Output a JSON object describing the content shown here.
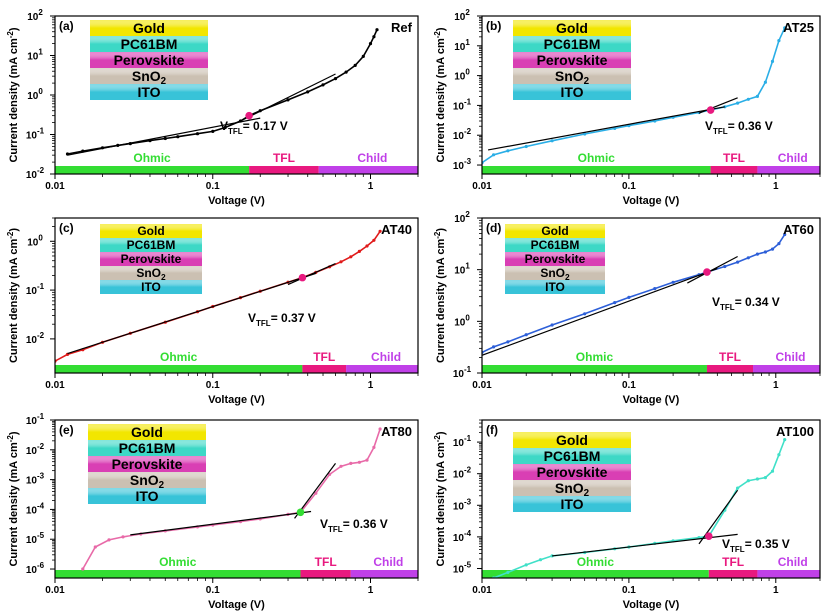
{
  "colors": {
    "ohmic": "#33dd33",
    "tfl": "#e8197f",
    "child": "#c040e8",
    "layer_gold": "#f2e600",
    "layer_pcbm": "#3dd8c6",
    "layer_perovskite": "#d93fb4",
    "layer_sno2": "#cbc0b2",
    "layer_ito": "#38c3d8"
  },
  "chart_data": [
    {
      "type": "scatter",
      "panel": "(a)",
      "label": "Ref",
      "vtfl_text": "V",
      "vtfl_sub": "TFL",
      "vtfl_value": "= 0.17 V",
      "vtfl": 0.17,
      "xlabel": "Voltage (V)",
      "ylabel": "Current density (mA cm",
      "ylabel_sup": "-2",
      "ylabel_end": ")",
      "x_scale": "log",
      "y_scale": "log",
      "xlim": [
        0.01,
        2.0
      ],
      "ylim": [
        0.01,
        100
      ],
      "x_ticks": [
        "0.01",
        "0.1",
        "1"
      ],
      "y_ticks": [
        "10",
        "10",
        "10",
        "10",
        "10"
      ],
      "y_tick_exps": [
        "-2",
        "-1",
        "0",
        "1",
        "2"
      ],
      "legend_layers": [
        {
          "text": "Gold",
          "sub": ""
        },
        {
          "text": "PC61BM",
          "sub": ""
        },
        {
          "text": "Perovskite",
          "sub": ""
        },
        {
          "text": "SnO",
          "sub": "2"
        },
        {
          "text": "ITO",
          "sub": ""
        }
      ],
      "regions": [
        "Ohmic",
        "TFL",
        "Child"
      ],
      "region_bounds": [
        0.17,
        0.47
      ],
      "marker_color": "#e8197f",
      "series_color": "#000000",
      "data": [
        [
          0.012,
          0.032
        ],
        [
          0.015,
          0.038
        ],
        [
          0.02,
          0.046
        ],
        [
          0.025,
          0.053
        ],
        [
          0.03,
          0.059
        ],
        [
          0.04,
          0.07
        ],
        [
          0.05,
          0.079
        ],
        [
          0.06,
          0.088
        ],
        [
          0.08,
          0.105
        ],
        [
          0.1,
          0.12
        ],
        [
          0.12,
          0.15
        ],
        [
          0.15,
          0.22
        ],
        [
          0.17,
          0.3
        ],
        [
          0.2,
          0.4
        ],
        [
          0.3,
          0.75
        ],
        [
          0.4,
          1.2
        ],
        [
          0.5,
          1.8
        ],
        [
          0.6,
          2.6
        ],
        [
          0.7,
          3.8
        ],
        [
          0.8,
          5.6
        ],
        [
          0.9,
          9.5
        ],
        [
          1.0,
          20
        ],
        [
          1.05,
          30
        ],
        [
          1.1,
          45
        ]
      ],
      "fit_ohmic": [
        [
          0.012,
          0.03
        ],
        [
          0.2,
          0.26
        ]
      ],
      "fit_tfl": [
        [
          0.15,
          0.22
        ],
        [
          0.6,
          3.4
        ]
      ]
    },
    {
      "type": "scatter",
      "panel": "(b)",
      "label": "AT25",
      "vtfl_text": "V",
      "vtfl_sub": "TFL",
      "vtfl_value": "= 0.36 V",
      "vtfl": 0.36,
      "xlabel": "Voltage (V)",
      "ylabel": "Current density (mA cm",
      "ylabel_sup": "-2",
      "ylabel_end": ")",
      "x_scale": "log",
      "y_scale": "log",
      "xlim": [
        0.01,
        2.0
      ],
      "ylim": [
        0.0005,
        100
      ],
      "x_ticks": [
        "0.01",
        "0.1",
        "1"
      ],
      "y_ticks": [
        "10",
        "10",
        "10",
        "10",
        "10",
        "10"
      ],
      "y_tick_exps": [
        "-3",
        "-2",
        "-1",
        "0",
        "1",
        "2"
      ],
      "legend_layers": [
        {
          "text": "Gold",
          "sub": ""
        },
        {
          "text": "PC61BM",
          "sub": ""
        },
        {
          "text": "Perovskite",
          "sub": ""
        },
        {
          "text": "SnO",
          "sub": "2"
        },
        {
          "text": "ITO",
          "sub": ""
        }
      ],
      "regions": [
        "Ohmic",
        "TFL",
        "Child"
      ],
      "region_bounds": [
        0.36,
        0.75
      ],
      "marker_color": "#e8197f",
      "series_color": "#2aaee6",
      "data": [
        [
          0.01,
          0.0012
        ],
        [
          0.012,
          0.0022
        ],
        [
          0.015,
          0.003
        ],
        [
          0.02,
          0.0042
        ],
        [
          0.03,
          0.0065
        ],
        [
          0.05,
          0.011
        ],
        [
          0.08,
          0.017
        ],
        [
          0.1,
          0.021
        ],
        [
          0.15,
          0.03
        ],
        [
          0.2,
          0.04
        ],
        [
          0.3,
          0.058
        ],
        [
          0.36,
          0.07
        ],
        [
          0.45,
          0.09
        ],
        [
          0.55,
          0.12
        ],
        [
          0.65,
          0.16
        ],
        [
          0.75,
          0.2
        ],
        [
          0.85,
          0.6
        ],
        [
          0.95,
          3
        ],
        [
          1.05,
          15
        ],
        [
          1.15,
          40
        ]
      ],
      "fit_ohmic": [
        [
          0.011,
          0.0032
        ],
        [
          0.45,
          0.09
        ]
      ],
      "fit_tfl": [
        [
          0.3,
          0.055
        ],
        [
          0.55,
          0.18
        ]
      ]
    },
    {
      "type": "scatter",
      "panel": "(c)",
      "label": "AT40",
      "vtfl_text": "V",
      "vtfl_sub": "TFL",
      "vtfl_value": "= 0.37 V",
      "vtfl": 0.37,
      "xlabel": "Voltage (V)",
      "ylabel": "Current density (mA cm",
      "ylabel_sup": "-2",
      "ylabel_end": ")",
      "x_scale": "log",
      "y_scale": "log",
      "xlim": [
        0.01,
        2.0
      ],
      "ylim": [
        0.002,
        3
      ],
      "x_ticks": [
        "0.01",
        "0.1",
        "1"
      ],
      "y_ticks": [
        "10",
        "10",
        "10"
      ],
      "y_tick_exps": [
        "-2",
        "-1",
        "0"
      ],
      "legend_layers": [
        {
          "text": "Gold",
          "sub": ""
        },
        {
          "text": "PC61BM",
          "sub": ""
        },
        {
          "text": "Perovskite",
          "sub": ""
        },
        {
          "text": "SnO",
          "sub": "2"
        },
        {
          "text": "ITO",
          "sub": ""
        }
      ],
      "regions": [
        "Ohmic",
        "TFL",
        "Child"
      ],
      "region_bounds": [
        0.37,
        0.7
      ],
      "marker_color": "#e8197f",
      "series_color": "#e01a1a",
      "data": [
        [
          0.01,
          0.0035
        ],
        [
          0.012,
          0.0048
        ],
        [
          0.015,
          0.006
        ],
        [
          0.02,
          0.0085
        ],
        [
          0.03,
          0.013
        ],
        [
          0.05,
          0.022
        ],
        [
          0.08,
          0.036
        ],
        [
          0.1,
          0.046
        ],
        [
          0.15,
          0.07
        ],
        [
          0.2,
          0.095
        ],
        [
          0.3,
          0.145
        ],
        [
          0.37,
          0.18
        ],
        [
          0.45,
          0.23
        ],
        [
          0.55,
          0.3
        ],
        [
          0.65,
          0.38
        ],
        [
          0.75,
          0.48
        ],
        [
          0.85,
          0.62
        ],
        [
          0.95,
          0.8
        ],
        [
          1.05,
          1.05
        ],
        [
          1.15,
          1.6
        ]
      ],
      "fit_ohmic": [
        [
          0.012,
          0.005
        ],
        [
          0.45,
          0.22
        ]
      ],
      "fit_tfl": [
        [
          0.3,
          0.13
        ],
        [
          0.6,
          0.35
        ]
      ]
    },
    {
      "type": "scatter",
      "panel": "(d)",
      "label": "AT60",
      "vtfl_text": "V",
      "vtfl_sub": "TFL",
      "vtfl_value": "= 0.34 V",
      "vtfl": 0.34,
      "xlabel": "Voltage (V)",
      "ylabel": "Current density (mA cm",
      "ylabel_sup": "-2",
      "ylabel_end": ")",
      "x_scale": "log",
      "y_scale": "log",
      "xlim": [
        0.01,
        2.0
      ],
      "ylim": [
        0.1,
        100
      ],
      "x_ticks": [
        "0.01",
        "0.1",
        "1"
      ],
      "y_ticks": [
        "10",
        "10",
        "10",
        "10"
      ],
      "y_tick_exps": [
        "-1",
        "0",
        "1",
        "2"
      ],
      "legend_layers": [
        {
          "text": "Gold",
          "sub": ""
        },
        {
          "text": "PC61BM",
          "sub": ""
        },
        {
          "text": "Perovskite",
          "sub": ""
        },
        {
          "text": "SnO",
          "sub": "2"
        },
        {
          "text": "ITO",
          "sub": ""
        }
      ],
      "regions": [
        "Ohmic",
        "TFL",
        "Child"
      ],
      "region_bounds": [
        0.34,
        0.7
      ],
      "marker_color": "#e8197f",
      "series_color": "#2d5fd8",
      "data": [
        [
          0.01,
          0.25
        ],
        [
          0.012,
          0.32
        ],
        [
          0.015,
          0.4
        ],
        [
          0.02,
          0.55
        ],
        [
          0.03,
          0.85
        ],
        [
          0.05,
          1.4
        ],
        [
          0.08,
          2.3
        ],
        [
          0.1,
          2.9
        ],
        [
          0.15,
          4.3
        ],
        [
          0.2,
          5.7
        ],
        [
          0.3,
          8.0
        ],
        [
          0.34,
          9.0
        ],
        [
          0.45,
          11.5
        ],
        [
          0.55,
          14
        ],
        [
          0.65,
          17
        ],
        [
          0.75,
          20
        ],
        [
          0.85,
          22
        ],
        [
          0.95,
          25
        ],
        [
          1.05,
          32
        ],
        [
          1.15,
          48
        ]
      ],
      "fit_ohmic": [
        [
          0.01,
          0.22
        ],
        [
          0.4,
          10.5
        ]
      ],
      "fit_tfl": [
        [
          0.25,
          5.5
        ],
        [
          0.55,
          18
        ]
      ]
    },
    {
      "type": "scatter",
      "panel": "(e)",
      "label": "AT80",
      "vtfl_text": "V",
      "vtfl_sub": "TFL",
      "vtfl_value": "= 0.36 V",
      "vtfl": 0.36,
      "xlabel": "Voltage (V)",
      "ylabel": "Current density (mA cm",
      "ylabel_sup": "-2",
      "ylabel_end": ")",
      "x_scale": "log",
      "y_scale": "log",
      "xlim": [
        0.01,
        2.0
      ],
      "ylim": [
        5e-07,
        0.1
      ],
      "x_ticks": [
        "0.01",
        "0.1",
        "1"
      ],
      "y_ticks": [
        "10",
        "10",
        "10",
        "10",
        "10",
        "10"
      ],
      "y_tick_exps": [
        "-6",
        "-5",
        "-4",
        "-3",
        "-2",
        "-1"
      ],
      "legend_layers": [
        {
          "text": "Gold",
          "sub": ""
        },
        {
          "text": "PC61BM",
          "sub": ""
        },
        {
          "text": "Perovskite",
          "sub": ""
        },
        {
          "text": "SnO",
          "sub": "2"
        },
        {
          "text": "ITO",
          "sub": ""
        }
      ],
      "regions": [
        "Ohmic",
        "TFL",
        "Child"
      ],
      "region_bounds": [
        0.36,
        0.75
      ],
      "marker_color": "#33dd33",
      "series_color": "#e86aa8",
      "data": [
        [
          0.015,
          1e-06
        ],
        [
          0.018,
          5.5e-06
        ],
        [
          0.022,
          9.5e-06
        ],
        [
          0.027,
          1.2e-05
        ],
        [
          0.035,
          1.5e-05
        ],
        [
          0.05,
          1.9e-05
        ],
        [
          0.08,
          2.6e-05
        ],
        [
          0.1,
          3e-05
        ],
        [
          0.15,
          3.9e-05
        ],
        [
          0.2,
          4.8e-05
        ],
        [
          0.3,
          6.8e-05
        ],
        [
          0.36,
          8e-05
        ],
        [
          0.45,
          0.00035
        ],
        [
          0.55,
          0.0015
        ],
        [
          0.65,
          0.0028
        ],
        [
          0.75,
          0.0035
        ],
        [
          0.85,
          0.0038
        ],
        [
          0.95,
          0.0045
        ],
        [
          1.05,
          0.012
        ],
        [
          1.15,
          0.05
        ]
      ],
      "fit_ohmic": [
        [
          0.03,
          1.4e-05
        ],
        [
          0.42,
          8.5e-05
        ]
      ],
      "fit_tfl": [
        [
          0.33,
          5e-05
        ],
        [
          0.6,
          0.0035
        ]
      ]
    },
    {
      "type": "scatter",
      "panel": "(f)",
      "label": "AT100",
      "vtfl_text": "V",
      "vtfl_sub": "TFL",
      "vtfl_value": "= 0.35 V",
      "vtfl": 0.35,
      "xlabel": "Voltage (V)",
      "ylabel": "Current density (mA cm",
      "ylabel_sup": "-2",
      "ylabel_end": ")",
      "x_scale": "log",
      "y_scale": "log",
      "xlim": [
        0.01,
        2.0
      ],
      "ylim": [
        5e-06,
        0.5
      ],
      "x_ticks": [
        "0.01",
        "0.1",
        "1"
      ],
      "y_ticks": [
        "10",
        "10",
        "10",
        "10",
        "10"
      ],
      "y_tick_exps": [
        "-5",
        "-4",
        "-3",
        "-2",
        "-1"
      ],
      "legend_layers": [
        {
          "text": "Gold",
          "sub": ""
        },
        {
          "text": "PC61BM",
          "sub": ""
        },
        {
          "text": "Perovskite",
          "sub": ""
        },
        {
          "text": "SnO",
          "sub": "2"
        },
        {
          "text": "ITO",
          "sub": ""
        }
      ],
      "regions": [
        "Ohmic",
        "TFL",
        "Child"
      ],
      "region_bounds": [
        0.35,
        0.75
      ],
      "marker_color": "#e8197f",
      "series_color": "#40e0c8",
      "data": [
        [
          0.012,
          5e-06
        ],
        [
          0.015,
          7.5e-06
        ],
        [
          0.02,
          1.3e-05
        ],
        [
          0.025,
          1.9e-05
        ],
        [
          0.03,
          2.5e-05
        ],
        [
          0.05,
          3.2e-05
        ],
        [
          0.08,
          4.2e-05
        ],
        [
          0.1,
          4.8e-05
        ],
        [
          0.15,
          6.2e-05
        ],
        [
          0.2,
          7.5e-05
        ],
        [
          0.3,
          9.5e-05
        ],
        [
          0.35,
          0.000105
        ],
        [
          0.45,
          0.0007
        ],
        [
          0.55,
          0.0035
        ],
        [
          0.65,
          0.006
        ],
        [
          0.75,
          0.0068
        ],
        [
          0.85,
          0.0075
        ],
        [
          0.95,
          0.012
        ],
        [
          1.05,
          0.04
        ],
        [
          1.15,
          0.12
        ]
      ],
      "fit_ohmic": [
        [
          0.03,
          2.5e-05
        ],
        [
          0.55,
          0.00012
        ]
      ],
      "fit_tfl": [
        [
          0.3,
          6e-05
        ],
        [
          0.55,
          0.003
        ]
      ]
    }
  ]
}
